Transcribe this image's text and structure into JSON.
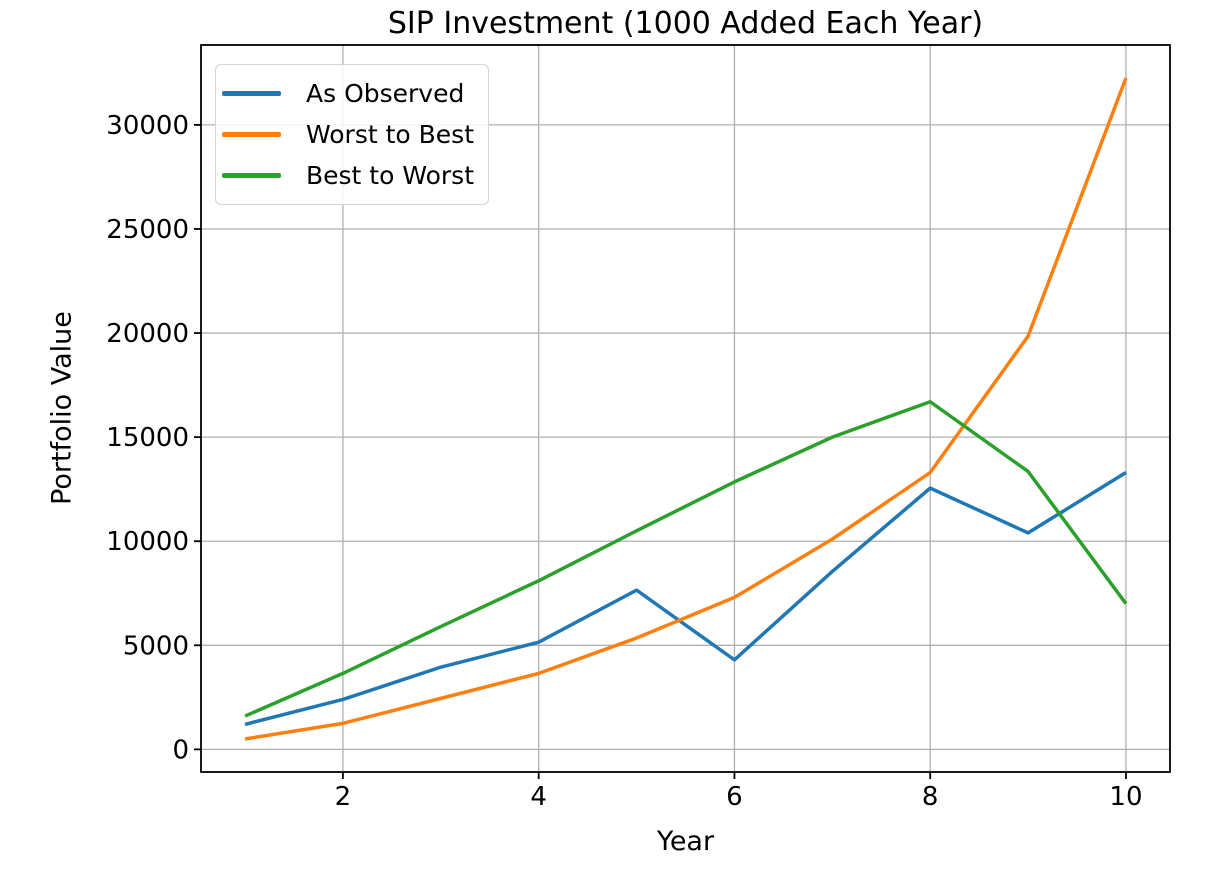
{
  "chart_data": {
    "type": "line",
    "title": "SIP Investment (1000 Added Each Year)",
    "xlabel": "Year",
    "ylabel": "Portfolio Value",
    "x": [
      1,
      2,
      3,
      4,
      5,
      6,
      7,
      8,
      9,
      10
    ],
    "series": [
      {
        "name": "As Observed",
        "color": "#1f77b4",
        "values": [
          1200,
          2400,
          3950,
          5150,
          7650,
          4300,
          8550,
          12550,
          10400,
          13300
        ]
      },
      {
        "name": "Worst to Best",
        "color": "#ff7f0e",
        "values": [
          500,
          1250,
          2450,
          3650,
          5350,
          7300,
          10100,
          13300,
          19850,
          32250
        ]
      },
      {
        "name": "Best to Worst",
        "color": "#2ca02c",
        "values": [
          1600,
          3650,
          5900,
          8100,
          10500,
          12850,
          15000,
          16700,
          13350,
          7000
        ]
      }
    ],
    "x_ticks": [
      2,
      4,
      6,
      8,
      10
    ],
    "y_ticks": [
      0,
      5000,
      10000,
      15000,
      20000,
      25000,
      30000
    ],
    "xlim": [
      0.55,
      10.45
    ],
    "ylim": [
      -1087,
      33838
    ],
    "grid": true,
    "legend_position": "upper left",
    "grid_color": "#b0b0b0",
    "axis_color": "#000000",
    "background": "#ffffff"
  }
}
